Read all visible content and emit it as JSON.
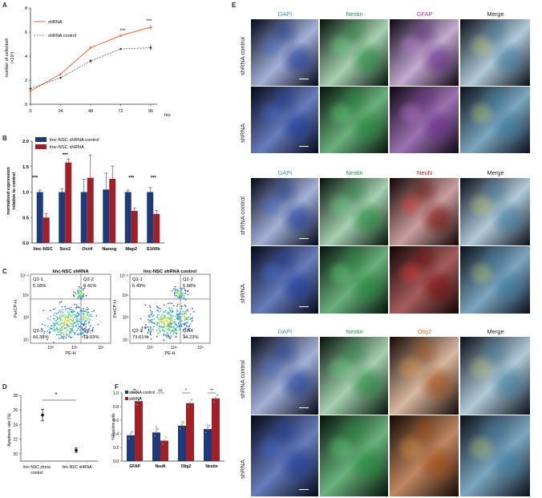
{
  "panels": {
    "A": "A",
    "B": "B",
    "C": "C",
    "D": "D",
    "E": "E",
    "F": "F"
  },
  "colors": {
    "blue": "#1f3a7a",
    "red": "#a02027",
    "orange": "#e36a3b",
    "dashed": "#555555"
  },
  "panel_a": {
    "ylabel_line1": "number of cells/dish",
    "ylabel_line2": "(×10⁵)",
    "xunit": "hrs",
    "legend": [
      "shRNA",
      "shRNA control"
    ],
    "x_ticks": [
      "0",
      "24",
      "48",
      "72",
      "96"
    ],
    "y_ticks": [
      "0",
      "2",
      "4",
      "6",
      "8"
    ],
    "sig": [
      "***",
      "***"
    ]
  },
  "panel_b": {
    "legend": [
      "linc-NSC shRNA control",
      "linc-NSC shRNA"
    ],
    "ylabel_line1": "normalized expression",
    "ylabel_line2": "relative to control",
    "y_ticks": [
      "0.0",
      "0.5",
      "1.0",
      "1.5",
      "2.0"
    ],
    "sig": [
      "***",
      "***",
      "***",
      "***"
    ]
  },
  "panel_c": {
    "plots": [
      {
        "title": "linc-NSC shRNA",
        "q1": "Q2-1",
        "q1v": "6.18%",
        "q2": "Q2-2",
        "q2v": "8.41%",
        "q3": "Q2-3",
        "q3v": "66.38%",
        "q4": "Q2-4",
        "q4v": "19.03%"
      },
      {
        "title": "linc-NSC  shRNA control",
        "q1": "Q2-1",
        "q1v": "6.49%",
        "q2": "Q2-2",
        "q2v": "5.68%",
        "q3": "Q2-3",
        "q3v": "73.61%",
        "q4": "Q2-4",
        "q4v": "14.23%"
      }
    ],
    "ylabel": "PerCP-H",
    "xlabel": "PE-H",
    "x_ticks": [
      "10³",
      "10⁵",
      "10⁷"
    ],
    "y_ticks": [
      "10⁷·²",
      "10⁵",
      "10³",
      "10¹"
    ]
  },
  "panel_d": {
    "ylabel": "Apoptosis rate (%)",
    "y_ticks": [
      "20",
      "22",
      "24",
      "26",
      "28"
    ],
    "categories": [
      "linc-NSC shrna control",
      "linc-NSC  shRNA"
    ],
    "sig": "*"
  },
  "panel_f": {
    "legend": [
      "shRNA control",
      "shRNA"
    ],
    "ylabel": "%Positive cells",
    "y_ticks": [
      "0.0",
      "0.2",
      "0.4",
      "0.6",
      "0.8",
      "1.0"
    ],
    "sig": [
      "**",
      "ns",
      "*",
      "**"
    ]
  },
  "panel_e": {
    "channels": [
      [
        "DAPI",
        "Nestin",
        "GFAP",
        "Merge"
      ],
      [
        "DAPI",
        "Nestin",
        "NeuN",
        "Merge"
      ],
      [
        "DAPI",
        "Nestin",
        "Olig2",
        "Merge"
      ]
    ],
    "rows": [
      "shRNA control",
      "shRNA"
    ]
  },
  "chart_data": [
    {
      "type": "line",
      "title": "",
      "xlabel": "hrs",
      "ylabel": "number of cells/dish (×10⁵)",
      "x": [
        0,
        24,
        48,
        72,
        96
      ],
      "series": [
        {
          "name": "shRNA",
          "values": [
            1.1,
            2.5,
            4.7,
            5.7,
            6.4
          ]
        },
        {
          "name": "shRNA control",
          "values": [
            1.3,
            2.2,
            3.6,
            4.6,
            4.7
          ]
        }
      ],
      "ylim": [
        0,
        8
      ],
      "xlim": [
        0,
        96
      ]
    },
    {
      "type": "bar",
      "xlabel": "",
      "ylabel": "normalized expression relative to control",
      "categories": [
        "linc-NSC",
        "Sox2",
        "Oct4",
        "Nanog",
        "Map2",
        "S100b"
      ],
      "series": [
        {
          "name": "linc-NSC shRNA control",
          "values": [
            1.0,
            1.0,
            1.0,
            1.05,
            1.0,
            1.0
          ]
        },
        {
          "name": "linc-NSC shRNA",
          "values": [
            0.5,
            1.58,
            1.28,
            1.26,
            0.63,
            0.57
          ]
        }
      ],
      "ylim": [
        0,
        2.0
      ]
    },
    {
      "type": "scatter",
      "ylabel": "Apoptosis rate (%)",
      "categories": [
        "linc-NSC shrna control",
        "linc-NSC  shRNA"
      ],
      "values": [
        25.3,
        20.5
      ],
      "errors": [
        0.8,
        0.3
      ],
      "ylim": [
        19,
        28
      ]
    },
    {
      "type": "bar",
      "ylabel": "%Positive cells",
      "categories": [
        "GFAP",
        "NeuN",
        "Olig2",
        "Nestin"
      ],
      "series": [
        {
          "name": "shRNA control",
          "values": [
            0.38,
            0.42,
            0.52,
            0.47
          ]
        },
        {
          "name": "shRNA",
          "values": [
            0.88,
            0.3,
            0.85,
            0.92
          ]
        }
      ],
      "ylim": [
        0,
        1.0
      ]
    }
  ]
}
